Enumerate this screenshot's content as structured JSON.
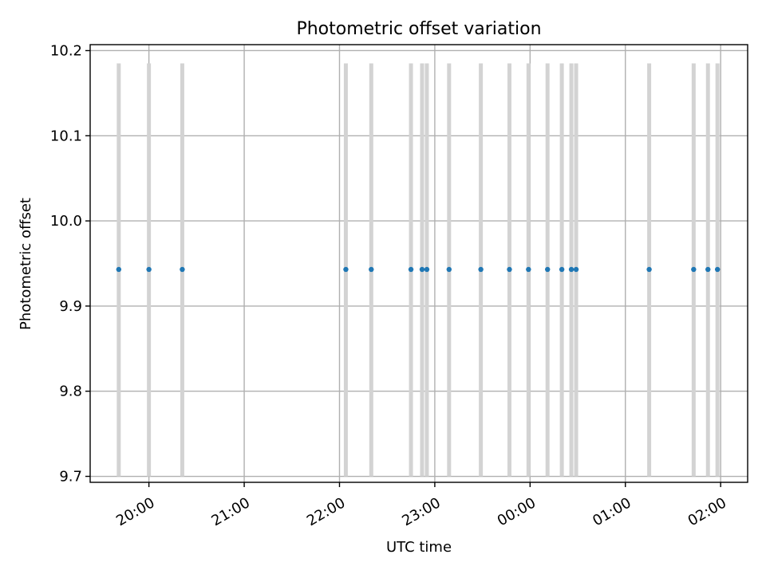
{
  "chart_data": {
    "type": "scatter",
    "title": "Photometric offset variation",
    "xlabel": "UTC time",
    "ylabel": "Photometric offset",
    "ylim": [
      9.693,
      10.207
    ],
    "xlim": [
      "19:23",
      "02:17"
    ],
    "grid": true,
    "y_ticks": [
      "9.7",
      "9.8",
      "9.9",
      "10.0",
      "10.1",
      "10.2"
    ],
    "y_tick_values": [
      9.7,
      9.8,
      9.9,
      10.0,
      10.1,
      10.2
    ],
    "x_ticks": [
      "20:00",
      "21:00",
      "22:00",
      "23:00",
      "00:00",
      "01:00",
      "02:00"
    ],
    "x_tick_values": [
      "20:00",
      "21:00",
      "22:00",
      "23:00",
      "00:00",
      "01:00",
      "02:00"
    ],
    "series": [
      {
        "color": "#1f77b4",
        "x": [
          "19:41",
          "20:00",
          "20:21",
          "22:04",
          "22:20",
          "22:45",
          "22:52",
          "22:55",
          "23:09",
          "23:29",
          "23:47",
          "23:59",
          "00:11",
          "00:20",
          "00:26",
          "00:29",
          "01:15",
          "01:43",
          "01:52",
          "01:58"
        ],
        "y": [
          9.943,
          9.943,
          9.943,
          9.943,
          9.943,
          9.943,
          9.943,
          9.943,
          9.943,
          9.943,
          9.943,
          9.943,
          9.943,
          9.943,
          9.943,
          9.943,
          9.943,
          9.943,
          9.943,
          9.943
        ],
        "error_low": [
          9.7,
          9.7,
          9.7,
          9.7,
          9.7,
          9.7,
          9.7,
          9.7,
          9.7,
          9.7,
          9.7,
          9.7,
          9.7,
          9.7,
          9.7,
          9.7,
          9.7,
          9.7,
          9.7,
          9.7
        ],
        "error_high": [
          10.185,
          10.185,
          10.185,
          10.185,
          10.185,
          10.185,
          10.185,
          10.185,
          10.185,
          10.185,
          10.185,
          10.185,
          10.185,
          10.185,
          10.185,
          10.185,
          10.185,
          10.185,
          10.185,
          10.185
        ],
        "error_color": "#d3d3d3"
      }
    ]
  }
}
